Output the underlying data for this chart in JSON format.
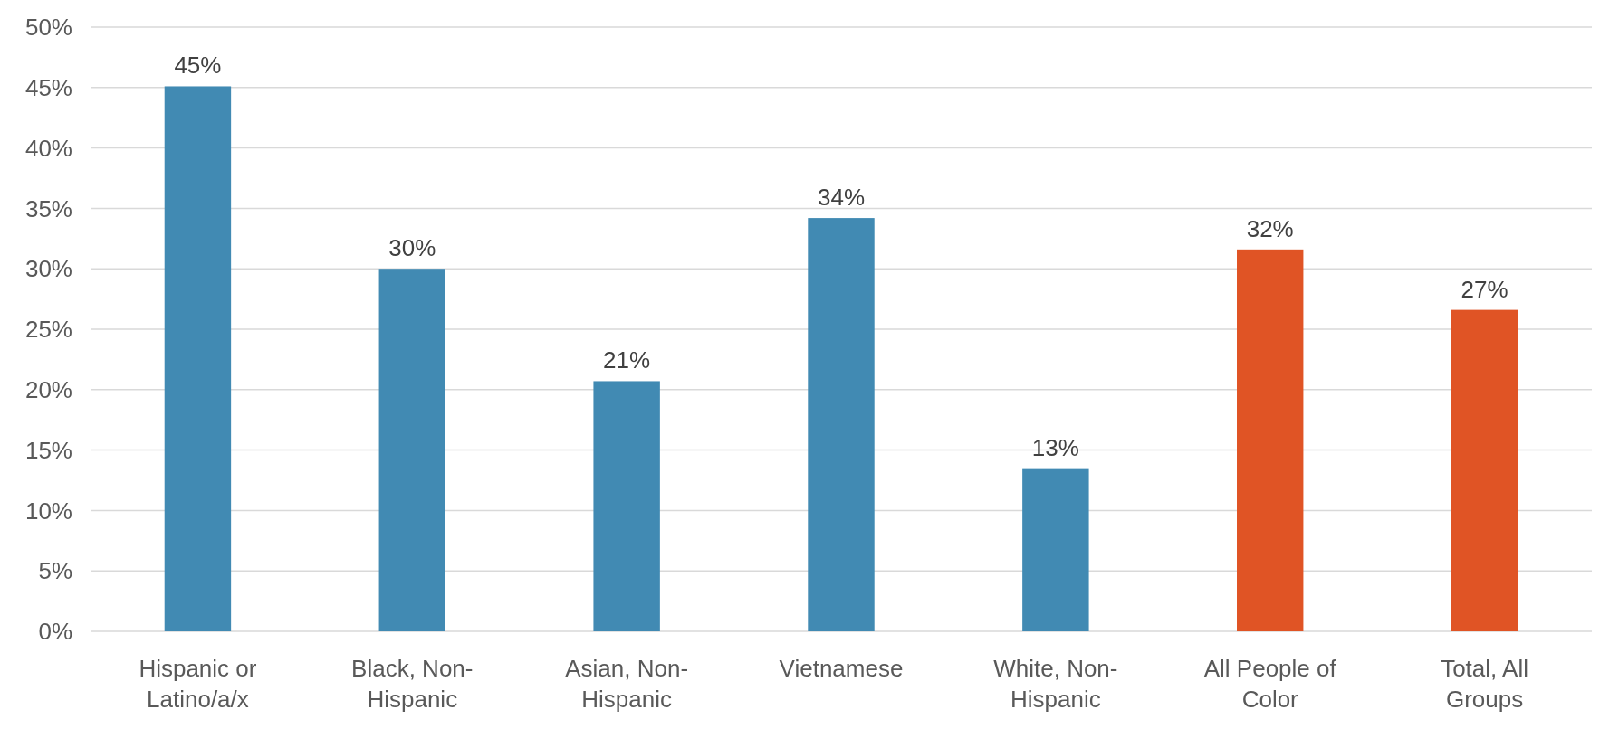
{
  "chart_data": {
    "type": "bar",
    "categories": [
      "Hispanic or Latino/a/x",
      "Black, Non-Hispanic",
      "Asian, Non-Hispanic",
      "Vietnamese",
      "White, Non-Hispanic",
      "All People of Color",
      "Total, All Groups"
    ],
    "values": [
      45.1,
      30.0,
      20.7,
      34.2,
      13.5,
      31.6,
      26.6
    ],
    "value_labels": [
      "45%",
      "30%",
      "21%",
      "34%",
      "13%",
      "32%",
      "27%"
    ],
    "colors": [
      "#418ab3",
      "#418ab3",
      "#418ab3",
      "#418ab3",
      "#418ab3",
      "#e05425",
      "#e05425"
    ],
    "ylim": [
      0,
      50
    ],
    "yticks": [
      {
        "value": 0,
        "label": "0%"
      },
      {
        "value": 5,
        "label": "5%"
      },
      {
        "value": 10,
        "label": "10%"
      },
      {
        "value": 15,
        "label": "15%"
      },
      {
        "value": 20,
        "label": "20%"
      },
      {
        "value": 25,
        "label": "25%"
      },
      {
        "value": 30,
        "label": "30%"
      },
      {
        "value": 35,
        "label": "35%"
      },
      {
        "value": 40,
        "label": "40%"
      },
      {
        "value": 45,
        "label": "45%"
      },
      {
        "value": 50,
        "label": "50%"
      }
    ],
    "grid": "y"
  }
}
